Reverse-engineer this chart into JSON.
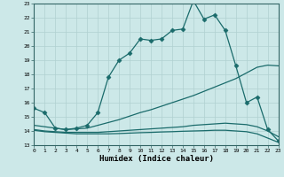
{
  "title": "",
  "xlabel": "Humidex (Indice chaleur)",
  "ylabel": "",
  "bg_color": "#cce8e8",
  "grid_color": "#b0d0d0",
  "line_color": "#1a6b6b",
  "xlim": [
    0,
    23
  ],
  "ylim": [
    13,
    23
  ],
  "xticks": [
    0,
    1,
    2,
    3,
    4,
    5,
    6,
    7,
    8,
    9,
    10,
    11,
    12,
    13,
    14,
    15,
    16,
    17,
    18,
    19,
    20,
    21,
    22,
    23
  ],
  "yticks": [
    13,
    14,
    15,
    16,
    17,
    18,
    19,
    20,
    21,
    22,
    23
  ],
  "line1_x": [
    0,
    1,
    2,
    3,
    4,
    5,
    6,
    7,
    8,
    9,
    10,
    11,
    12,
    13,
    14,
    15,
    16,
    17,
    18,
    19,
    20,
    21,
    22,
    23
  ],
  "line1_y": [
    15.6,
    15.3,
    14.2,
    14.1,
    14.2,
    14.4,
    15.3,
    17.8,
    19.0,
    19.5,
    20.5,
    20.4,
    20.5,
    21.1,
    21.2,
    23.2,
    21.9,
    22.2,
    21.1,
    18.6,
    16.0,
    16.4,
    14.1,
    13.3
  ],
  "line2_x": [
    0,
    1,
    2,
    3,
    4,
    5,
    6,
    7,
    8,
    9,
    10,
    11,
    12,
    13,
    14,
    15,
    16,
    17,
    18,
    19,
    20,
    21,
    22,
    23
  ],
  "line2_y": [
    14.4,
    14.3,
    14.2,
    14.1,
    14.15,
    14.2,
    14.4,
    14.6,
    14.8,
    15.05,
    15.3,
    15.5,
    15.75,
    16.0,
    16.25,
    16.5,
    16.8,
    17.1,
    17.4,
    17.7,
    18.1,
    18.5,
    18.65,
    18.6
  ],
  "line3_x": [
    0,
    1,
    2,
    3,
    4,
    5,
    6,
    7,
    8,
    9,
    10,
    11,
    12,
    13,
    14,
    15,
    16,
    17,
    18,
    19,
    20,
    21,
    22,
    23
  ],
  "line3_y": [
    14.1,
    14.0,
    13.95,
    13.9,
    13.9,
    13.9,
    13.9,
    13.95,
    14.0,
    14.05,
    14.1,
    14.15,
    14.2,
    14.25,
    14.3,
    14.4,
    14.45,
    14.5,
    14.55,
    14.5,
    14.45,
    14.3,
    14.0,
    13.6
  ],
  "line4_x": [
    0,
    1,
    2,
    3,
    4,
    5,
    6,
    7,
    8,
    9,
    10,
    11,
    12,
    13,
    14,
    15,
    16,
    17,
    18,
    19,
    20,
    21,
    22,
    23
  ],
  "line4_y": [
    14.05,
    13.95,
    13.9,
    13.85,
    13.8,
    13.8,
    13.8,
    13.8,
    13.82,
    13.85,
    13.88,
    13.9,
    13.93,
    13.95,
    13.98,
    14.0,
    14.02,
    14.05,
    14.05,
    14.0,
    13.95,
    13.8,
    13.5,
    13.2
  ],
  "marker": "D",
  "marker_size": 2.5,
  "linewidth": 0.9
}
